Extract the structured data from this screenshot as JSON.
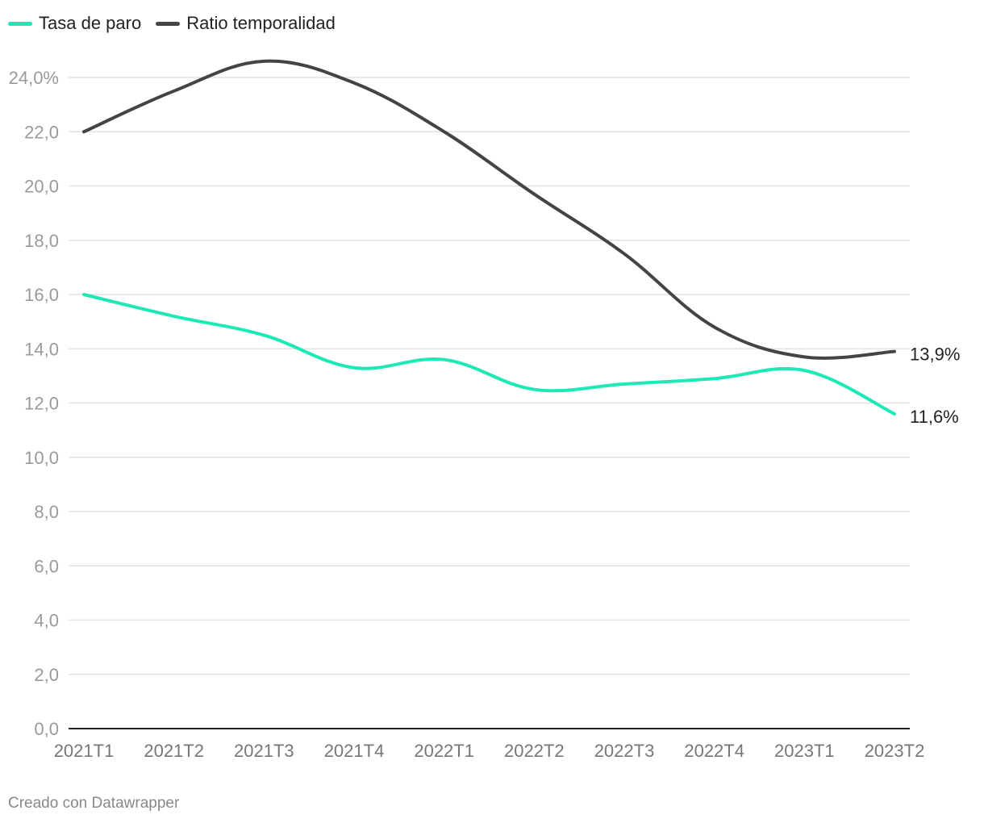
{
  "legend": [
    {
      "name": "Tasa de paro",
      "color": "#1de9b6"
    },
    {
      "name": "Ratio temporalidad",
      "color": "#444444"
    }
  ],
  "credit": "Creado con Datawrapper",
  "chart_data": {
    "type": "line",
    "categories": [
      "2021T1",
      "2021T2",
      "2021T3",
      "2021T4",
      "2022T1",
      "2022T2",
      "2022T3",
      "2022T4",
      "2023T1",
      "2023T2"
    ],
    "series": [
      {
        "name": "Tasa de paro",
        "color": "#1de9b6",
        "values": [
          16.0,
          15.2,
          14.5,
          13.3,
          13.6,
          12.5,
          12.7,
          12.9,
          13.2,
          11.6
        ],
        "end_label": "11,6%"
      },
      {
        "name": "Ratio temporalidad",
        "color": "#444444",
        "values": [
          22.0,
          23.5,
          24.6,
          23.8,
          22.0,
          19.7,
          17.5,
          14.8,
          13.7,
          13.9
        ],
        "end_label": "13,9%"
      }
    ],
    "y_ticks": [
      {
        "value": 0,
        "label": "0,0"
      },
      {
        "value": 2,
        "label": "2,0"
      },
      {
        "value": 4,
        "label": "4,0"
      },
      {
        "value": 6,
        "label": "6,0"
      },
      {
        "value": 8,
        "label": "8,0"
      },
      {
        "value": 10,
        "label": "10,0"
      },
      {
        "value": 12,
        "label": "12,0"
      },
      {
        "value": 14,
        "label": "14,0"
      },
      {
        "value": 16,
        "label": "16,0"
      },
      {
        "value": 18,
        "label": "18,0"
      },
      {
        "value": 20,
        "label": "20,0"
      },
      {
        "value": 22,
        "label": "22,0"
      },
      {
        "value": 24,
        "label": "24,0%"
      }
    ],
    "ylim": [
      0,
      24
    ],
    "grid": true,
    "legend_position": "top-left",
    "title": "",
    "xlabel": "",
    "ylabel": ""
  }
}
